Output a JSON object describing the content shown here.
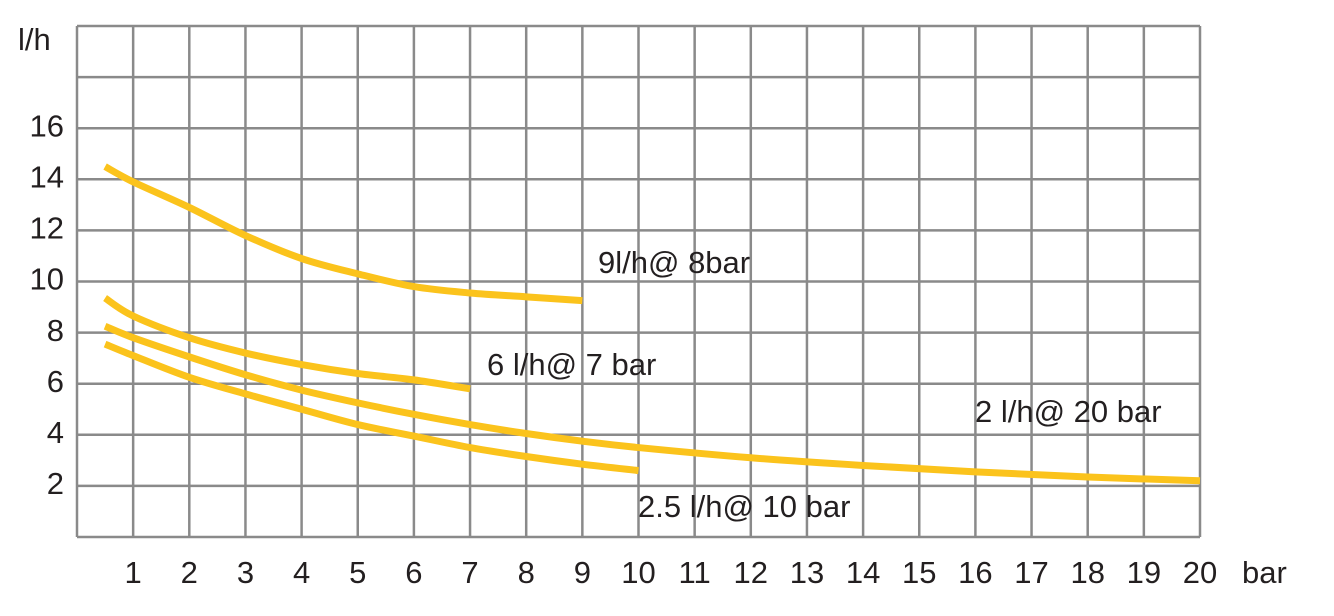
{
  "chart_data": {
    "type": "line",
    "x_label": "bar",
    "y_label": "l/h",
    "xlim": [
      0,
      20
    ],
    "ylim": [
      0,
      20
    ],
    "xticks": [
      1,
      2,
      3,
      4,
      5,
      6,
      7,
      8,
      9,
      10,
      11,
      12,
      13,
      14,
      15,
      16,
      17,
      18,
      19,
      20
    ],
    "yticks": [
      2,
      4,
      6,
      8,
      10,
      12,
      14,
      16
    ],
    "xgrid": [
      0,
      1,
      2,
      3,
      4,
      5,
      6,
      7,
      8,
      9,
      10,
      11,
      12,
      13,
      14,
      15,
      16,
      17,
      18,
      19,
      20
    ],
    "ygrid": [
      0,
      2,
      4,
      6,
      8,
      10,
      12,
      14,
      16,
      18,
      20
    ],
    "series": [
      {
        "name": "9l/h@ 8bar",
        "color": "#fbc31c",
        "x": [
          0.5,
          1,
          2,
          3,
          4,
          5,
          6,
          7,
          8,
          9
        ],
        "values": [
          14.5,
          13.9,
          12.9,
          11.8,
          10.9,
          10.3,
          9.8,
          9.55,
          9.4,
          9.25
        ]
      },
      {
        "name": "6 l/h@ 7 bar",
        "color": "#fbc31c",
        "x": [
          0.5,
          1,
          2,
          3,
          4,
          5,
          6,
          7
        ],
        "values": [
          9.35,
          8.65,
          7.8,
          7.2,
          6.75,
          6.4,
          6.15,
          5.8
        ]
      },
      {
        "name": "2 l/h@ 20 bar",
        "color": "#fbc31c",
        "x": [
          0.5,
          1,
          2,
          3,
          4,
          5,
          6,
          7,
          8,
          9,
          10,
          12,
          14,
          16,
          18,
          20
        ],
        "values": [
          8.25,
          7.8,
          7.05,
          6.35,
          5.75,
          5.25,
          4.8,
          4.4,
          4.05,
          3.75,
          3.5,
          3.1,
          2.8,
          2.55,
          2.35,
          2.2
        ]
      },
      {
        "name": "2.5 l/h@ 10 bar",
        "color": "#fbc31c",
        "x": [
          0.5,
          1,
          2,
          3,
          4,
          5,
          6,
          7,
          8,
          9,
          10
        ],
        "values": [
          7.55,
          7.1,
          6.25,
          5.6,
          5.0,
          4.4,
          3.95,
          3.5,
          3.15,
          2.85,
          2.6
        ]
      }
    ]
  }
}
